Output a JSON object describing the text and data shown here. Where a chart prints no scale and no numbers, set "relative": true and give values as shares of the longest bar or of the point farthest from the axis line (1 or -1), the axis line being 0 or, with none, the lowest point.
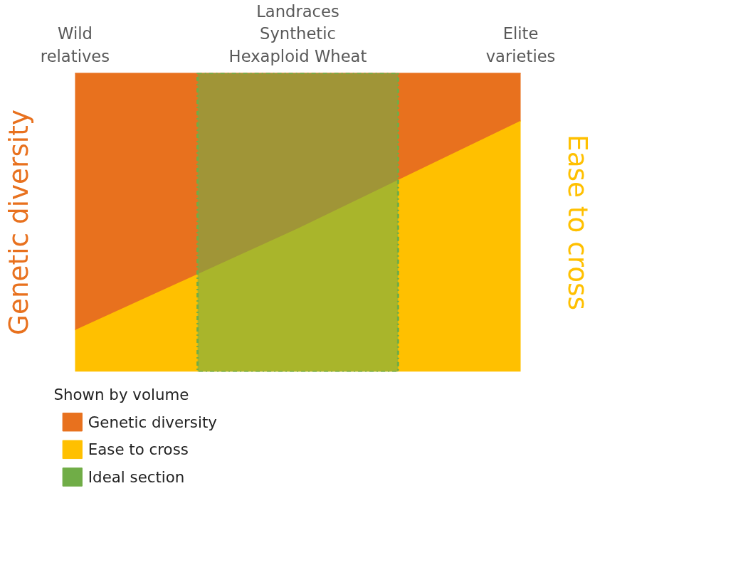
{
  "chart_data": {
    "type": "area",
    "stacked": true,
    "relative": true,
    "categories": [
      "Wild\nrelatives",
      "Landraces\nSynthetic\nHexaploid Wheat",
      "Elite\nvarieties"
    ],
    "series": [
      {
        "name": "Ease to cross",
        "color": "#ffc000",
        "values": [
          0.14,
          0.48,
          0.84
        ]
      },
      {
        "name": "Genetic diversity",
        "color": "#e8711e",
        "values": [
          0.86,
          0.52,
          0.16
        ]
      }
    ],
    "bands": [
      {
        "axis": "x",
        "from": "Landraces\nSynthetic\nHexaploid Wheat",
        "to": "Landraces\nSynthetic\nHexaploid Wheat",
        "label": "Ideal section",
        "color": "#70ad47"
      }
    ],
    "ylabel": "Genetic diversity",
    "y2label": "Ease to cross",
    "legend_title": "Shown by volume",
    "legend": "bottom"
  }
}
